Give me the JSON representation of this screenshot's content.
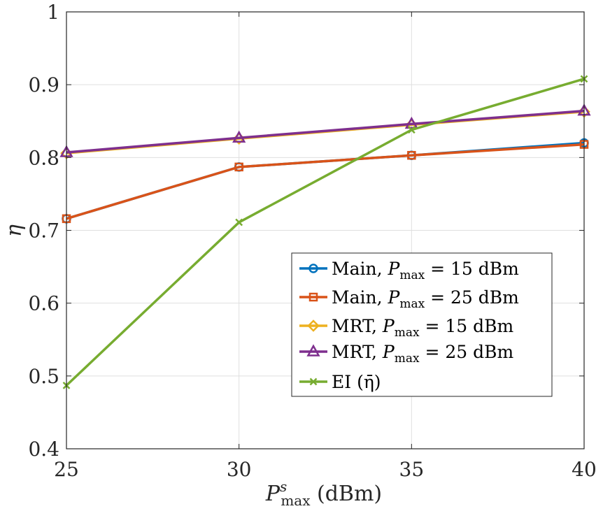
{
  "chart_data": {
    "type": "line",
    "x": [
      25,
      30,
      35,
      40
    ],
    "xlabel": "P_max^s (dBm)",
    "ylabel": "η",
    "xlim": [
      25,
      40
    ],
    "ylim": [
      0.4,
      1
    ],
    "xticks": [
      "25",
      "30",
      "35",
      "40"
    ],
    "yticks": [
      "0.4",
      "0.5",
      "0.6",
      "0.7",
      "0.8",
      "0.9",
      "1"
    ],
    "grid": true,
    "legend_position": "center-right",
    "series": [
      {
        "name": "Main, P_max = 15 dBm",
        "label": "Main, ",
        "pmax": " = 15 dBm",
        "color": "#0072BD",
        "marker": "circle",
        "values": [
          0.716,
          0.787,
          0.803,
          0.82
        ]
      },
      {
        "name": "Main, P_max = 25 dBm",
        "label": "Main, ",
        "pmax": " = 25 dBm",
        "color": "#D95319",
        "marker": "square",
        "values": [
          0.716,
          0.787,
          0.803,
          0.818
        ]
      },
      {
        "name": "MRT, P_max = 15 dBm",
        "label": "MRT, ",
        "pmax": " = 15 dBm",
        "color": "#EDB120",
        "marker": "diamond",
        "values": [
          0.806,
          0.826,
          0.845,
          0.863
        ]
      },
      {
        "name": "MRT, P_max = 25 dBm",
        "label": "MRT, ",
        "pmax": " = 25 dBm",
        "color": "#7E2F8E",
        "marker": "triangle",
        "values": [
          0.807,
          0.827,
          0.846,
          0.864
        ]
      },
      {
        "name": "EI (η̄)",
        "label": "EI (η̄)",
        "pmax": "",
        "color": "#77AC30",
        "marker": "x",
        "values": [
          0.487,
          0.711,
          0.838,
          0.908
        ]
      }
    ]
  }
}
